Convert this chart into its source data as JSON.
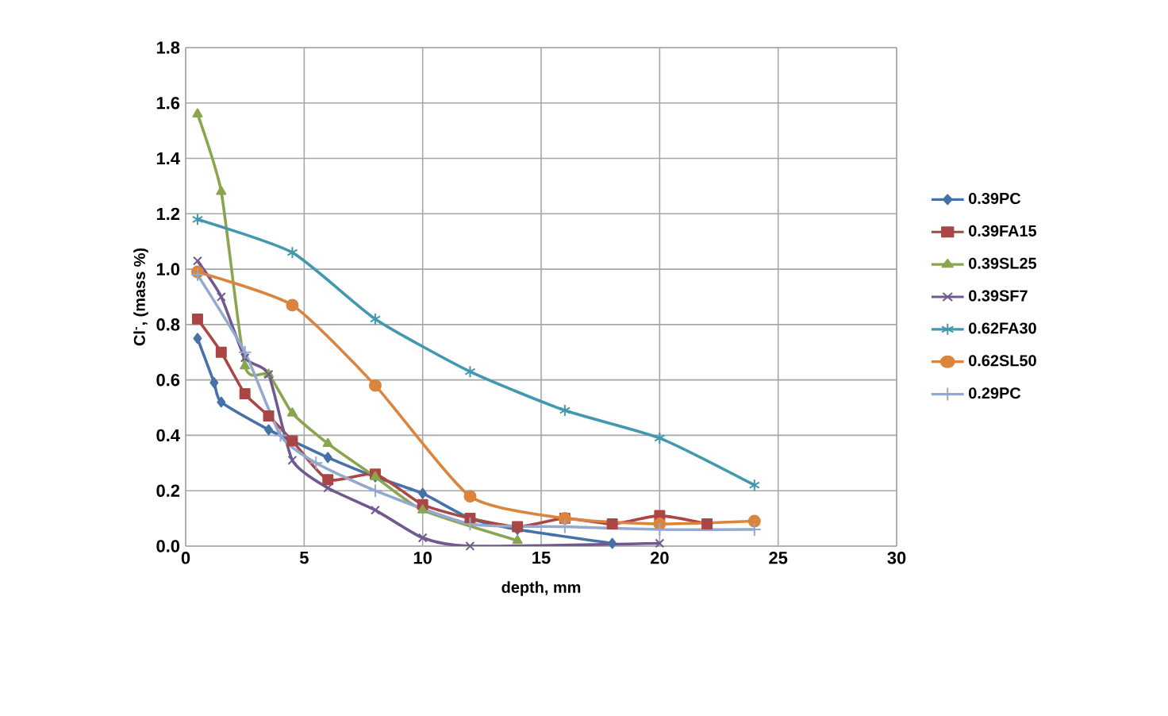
{
  "chart_data": {
    "type": "line",
    "xlabel": "depth, mm",
    "ylabel": "Cl$^{-}$, (mass %)",
    "xlim": [
      0,
      30
    ],
    "ylim": [
      0,
      1.8
    ],
    "xticks": [
      0,
      5,
      10,
      15,
      20,
      25,
      30
    ],
    "yticks": [
      {
        "value": 0,
        "label": "0.0"
      },
      0.2,
      0.4,
      0.6,
      0.8,
      {
        "value": 1,
        "label": "1.0"
      },
      1.2,
      1.4,
      1.6,
      1.8
    ],
    "grid": true,
    "legend": "right",
    "series": [
      {
        "name": "0.39PC",
        "color": "#4572a7",
        "marker": "diamond",
        "x": [
          0.5,
          1.2,
          1.5,
          3.5,
          4.5,
          6,
          8,
          10,
          12,
          14,
          18
        ],
        "values": [
          0.75,
          0.59,
          0.52,
          0.42,
          0.38,
          0.32,
          0.25,
          0.19,
          0.1,
          0.06,
          0.01
        ]
      },
      {
        "name": "0.39FA15",
        "color": "#aa4643",
        "marker": "square",
        "x": [
          0.5,
          1.5,
          2.5,
          3.5,
          4.5,
          6,
          8,
          10,
          12,
          14,
          16,
          18,
          20,
          22
        ],
        "values": [
          0.82,
          0.7,
          0.55,
          0.47,
          0.38,
          0.24,
          0.26,
          0.15,
          0.1,
          0.07,
          0.1,
          0.08,
          0.11,
          0.08
        ]
      },
      {
        "name": "0.39SL25",
        "color": "#89a54e",
        "marker": "triangle",
        "x": [
          0.5,
          1.5,
          2.5,
          3.5,
          4.5,
          6,
          8,
          10,
          14
        ],
        "values": [
          1.56,
          1.28,
          0.65,
          0.62,
          0.48,
          0.37,
          0.25,
          0.13,
          0.02
        ]
      },
      {
        "name": "0.39SF7",
        "color": "#71588f",
        "marker": "cross",
        "x": [
          0.5,
          1.5,
          2.5,
          3.5,
          4.5,
          6,
          8,
          10,
          12,
          20
        ],
        "values": [
          1.03,
          0.9,
          0.68,
          0.62,
          0.31,
          0.21,
          0.13,
          0.03,
          0.0,
          0.01
        ]
      },
      {
        "name": "0.62FA30",
        "color": "#4198af",
        "marker": "cross",
        "x": [
          0.5,
          4.5,
          8,
          12,
          16,
          20,
          24
        ],
        "values": [
          1.18,
          1.06,
          0.82,
          0.63,
          0.49,
          0.39,
          0.22
        ]
      },
      {
        "name": "0.62SL50",
        "color": "#db843d",
        "marker": "circle",
        "x": [
          0.5,
          4.5,
          8,
          12,
          16,
          20,
          24
        ],
        "values": [
          0.99,
          0.87,
          0.58,
          0.18,
          0.1,
          0.08,
          0.09
        ]
      },
      {
        "name": "0.29PC",
        "color": "#93a9cf",
        "marker": "plus",
        "x": [
          0.5,
          2.5,
          4,
          5.5,
          8,
          12,
          16,
          20,
          24
        ],
        "values": [
          0.98,
          0.7,
          0.4,
          0.3,
          0.2,
          0.08,
          0.07,
          0.06,
          0.06
        ]
      }
    ]
  }
}
